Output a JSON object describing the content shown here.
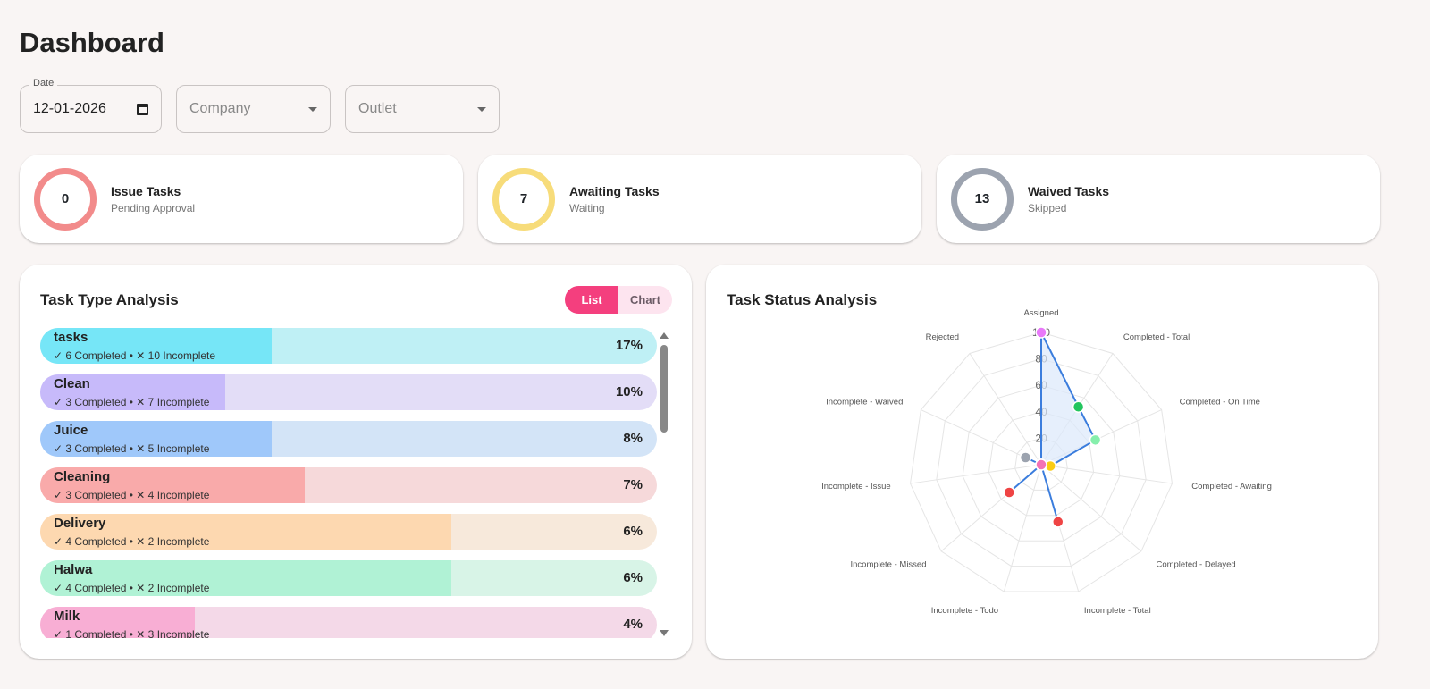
{
  "page_title": "Dashboard",
  "filters": {
    "date_label": "Date",
    "date_value": "12-01-2026",
    "company_placeholder": "Company",
    "outlet_placeholder": "Outlet"
  },
  "stats": [
    {
      "value": "0",
      "title": "Issue Tasks",
      "subtitle": "Pending Approval",
      "color": "#f28b8b"
    },
    {
      "value": "7",
      "title": "Awaiting Tasks",
      "subtitle": "Waiting",
      "color": "#f7dc7a"
    },
    {
      "value": "13",
      "title": "Waived Tasks",
      "subtitle": "Skipped",
      "color": "#9ca3af"
    }
  ],
  "task_type": {
    "title": "Task Type Analysis",
    "toggle": {
      "list": "List",
      "chart": "Chart",
      "selected": "List"
    },
    "items": [
      {
        "name": "tasks",
        "stats": "✓ 6 Completed • ✕ 10 Incomplete",
        "completed": 6,
        "incomplete": 10,
        "percent": "17%",
        "color": "#76e6f7",
        "bg": "#bff0f5"
      },
      {
        "name": "Clean",
        "stats": "✓ 3 Completed • ✕ 7 Incomplete",
        "completed": 3,
        "incomplete": 7,
        "percent": "10%",
        "color": "#c7bafa",
        "bg": "#e3ddf7"
      },
      {
        "name": "Juice",
        "stats": "✓ 3 Completed • ✕ 5 Incomplete",
        "completed": 3,
        "incomplete": 5,
        "percent": "8%",
        "color": "#9fc8fa",
        "bg": "#d3e4f7"
      },
      {
        "name": "Cleaning",
        "stats": "✓ 3 Completed • ✕ 4 Incomplete",
        "completed": 3,
        "incomplete": 4,
        "percent": "7%",
        "color": "#f9aaaa",
        "bg": "#f6d9da"
      },
      {
        "name": "Delivery",
        "stats": "✓ 4 Completed • ✕ 2 Incomplete",
        "completed": 4,
        "incomplete": 2,
        "percent": "6%",
        "color": "#fdd8b0",
        "bg": "#f7e9db"
      },
      {
        "name": "Halwa",
        "stats": "✓ 4 Completed • ✕ 2 Incomplete",
        "completed": 4,
        "incomplete": 2,
        "percent": "6%",
        "color": "#b0f2d5",
        "bg": "#d8f4e7"
      },
      {
        "name": "Milk",
        "stats": "✓ 1 Completed • ✕ 3 Incomplete",
        "completed": 1,
        "incomplete": 3,
        "percent": "4%",
        "color": "#f8aed4",
        "bg": "#f4d9e8"
      }
    ]
  },
  "task_status": {
    "title": "Task Status Analysis"
  },
  "chart_data": {
    "type": "radar",
    "categories": [
      "Assigned",
      "Completed - Total",
      "Completed - On Time",
      "Completed - Awaiting",
      "Completed - Delayed",
      "Incomplete - Total",
      "Incomplete - Todo",
      "Incomplete - Missed",
      "Incomplete - Issue",
      "Incomplete - Waived",
      "Rejected"
    ],
    "values": [
      100,
      52,
      45,
      7,
      0,
      45,
      0,
      32,
      0,
      13,
      0
    ],
    "point_colors": [
      "#e879f9",
      "#22c55e",
      "#86efac",
      "#facc15",
      "#f97316",
      "#ef4444",
      "#60a5fa",
      "#ef4444",
      "#f87171",
      "#9ca3af",
      "#f472b6"
    ],
    "r_ticks": [
      "20",
      "40",
      "60",
      "80",
      "100"
    ],
    "r_range": [
      0,
      100
    ],
    "line_color": "#3b7ddd",
    "fill_color": "#dbe8fb",
    "grid": true
  }
}
